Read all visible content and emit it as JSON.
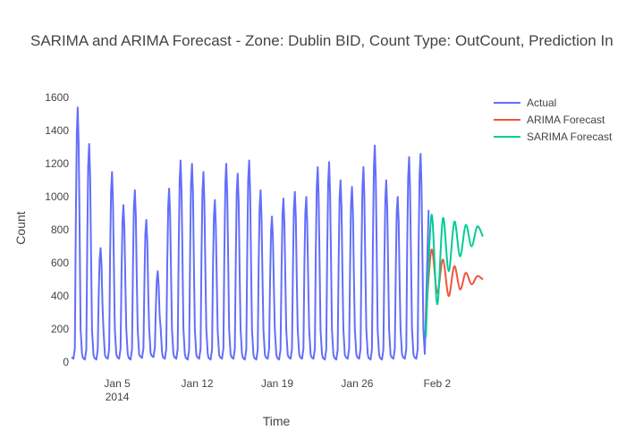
{
  "chart_data": {
    "type": "line",
    "title": "SARIMA and ARIMA Forecast - Zone: Dublin BID, Count Type: OutCount, Prediction In",
    "xlabel": "Time",
    "ylabel": "Count",
    "ylim": [
      0,
      1650
    ],
    "xlim": [
      "2014-01-01",
      "2014-02-06"
    ],
    "y_ticks": [
      0,
      200,
      400,
      600,
      800,
      1000,
      1200,
      1400,
      1600
    ],
    "x_ticks": [
      {
        "date": "2014-01-05",
        "label": "Jan 5",
        "sublabel": "2014"
      },
      {
        "date": "2014-01-12",
        "label": "Jan 12",
        "sublabel": ""
      },
      {
        "date": "2014-01-19",
        "label": "Jan 19",
        "sublabel": ""
      },
      {
        "date": "2014-01-26",
        "label": "Jan 26",
        "sublabel": ""
      },
      {
        "date": "2014-02-02",
        "label": "Feb 2",
        "sublabel": ""
      }
    ],
    "legend_position": "top-right",
    "series": [
      {
        "name": "Actual",
        "color": "#636efa",
        "peak_dates": [
          "2014-01-01",
          "2014-01-02",
          "2014-01-03",
          "2014-01-04",
          "2014-01-05",
          "2014-01-06",
          "2014-01-07",
          "2014-01-08",
          "2014-01-09",
          "2014-01-10",
          "2014-01-11",
          "2014-01-12",
          "2014-01-13",
          "2014-01-14",
          "2014-01-15",
          "2014-01-16",
          "2014-01-17",
          "2014-01-18",
          "2014-01-19",
          "2014-01-20",
          "2014-01-21",
          "2014-01-22",
          "2014-01-23",
          "2014-01-24",
          "2014-01-25",
          "2014-01-26",
          "2014-01-27",
          "2014-01-28",
          "2014-01-29",
          "2014-01-30",
          "2014-01-31"
        ],
        "daily_peaks": [
          1540,
          1320,
          690,
          1150,
          950,
          1040,
          860,
          550,
          1050,
          1220,
          1200,
          1150,
          980,
          1200,
          1140,
          1220,
          1040,
          880,
          990,
          1030,
          1000,
          1180,
          1210,
          1100,
          1060,
          1180,
          1310,
          1100,
          1000,
          1240,
          1260
        ],
        "daily_troughs": [
          20,
          15,
          15,
          20,
          20,
          15,
          25,
          30,
          20,
          20,
          15,
          20,
          15,
          20,
          20,
          15,
          15,
          20,
          15,
          20,
          20,
          20,
          15,
          15,
          20,
          20,
          15,
          15,
          20,
          20,
          20
        ],
        "final_point": {
          "date": "2014-02-01",
          "value": 920
        }
      },
      {
        "name": "ARIMA Forecast",
        "color": "#ef553b",
        "x": [
          "2014-02-01 00:00",
          "2014-02-01 12:00",
          "2014-02-02 00:00",
          "2014-02-02 12:00",
          "2014-02-03 00:00",
          "2014-02-03 12:00",
          "2014-02-04 00:00",
          "2014-02-04 12:00",
          "2014-02-05 00:00",
          "2014-02-05 12:00",
          "2014-02-06 00:00"
        ],
        "values": [
          260,
          680,
          420,
          620,
          400,
          580,
          440,
          540,
          470,
          520,
          500
        ]
      },
      {
        "name": "SARIMA Forecast",
        "color": "#00cc96",
        "x": [
          "2014-02-01 00:00",
          "2014-02-01 12:00",
          "2014-02-02 00:00",
          "2014-02-02 12:00",
          "2014-02-03 00:00",
          "2014-02-03 12:00",
          "2014-02-04 00:00",
          "2014-02-04 12:00",
          "2014-02-05 00:00",
          "2014-02-05 12:00",
          "2014-02-06 00:00"
        ],
        "values": [
          150,
          890,
          350,
          870,
          550,
          850,
          640,
          830,
          700,
          820,
          760
        ]
      }
    ]
  }
}
